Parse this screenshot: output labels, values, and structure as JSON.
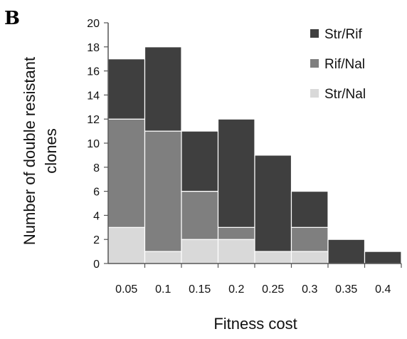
{
  "panel_label": "B",
  "chart_data": {
    "type": "bar",
    "stacked": true,
    "categories": [
      "0.05",
      "0.1",
      "0.15",
      "0.2",
      "0.25",
      "0.3",
      "0.35",
      "0.4"
    ],
    "series": [
      {
        "name": "Str/Nal",
        "color": "#d9d9d9",
        "values": [
          3,
          1,
          2,
          2,
          1,
          1,
          0,
          0
        ]
      },
      {
        "name": "Rif/Nal",
        "color": "#7f7f7f",
        "values": [
          9,
          10,
          4,
          1,
          0,
          2,
          0,
          0
        ]
      },
      {
        "name": "Str/Rif",
        "color": "#3f3f3f",
        "values": [
          5,
          7,
          5,
          9,
          8,
          3,
          2,
          1
        ]
      }
    ],
    "legend_order": [
      "Str/Rif",
      "Rif/Nal",
      "Str/Nal"
    ],
    "xlabel": "Fitness cost",
    "ylabel_lines": [
      "Number of double resistant",
      "clones"
    ],
    "ylim": [
      0,
      20
    ],
    "yticks": [
      0,
      2,
      4,
      6,
      8,
      10,
      12,
      14,
      16,
      18,
      20
    ],
    "legend_position": "top-right",
    "grid": false
  }
}
